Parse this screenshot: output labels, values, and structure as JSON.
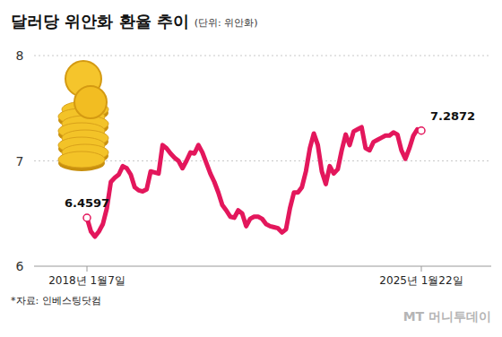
{
  "chart_data": {
    "type": "line",
    "title": "달러당 위안화 환율 추이",
    "subtitle": "(단위: 위안화)",
    "source": "*자료: 인베스팅닷컴",
    "watermark": "MT 머니투데이",
    "color": "#e3175c",
    "grid": true,
    "marker": "circle",
    "ylim": [
      6,
      8
    ],
    "yticks": [
      6,
      7,
      8
    ],
    "annotations": [
      "6.4597",
      "7.2872"
    ],
    "categories": [
      "2018년 1월7일",
      null,
      null,
      null,
      null,
      null,
      null,
      null,
      null,
      null,
      null,
      null,
      null,
      null,
      null,
      null,
      null,
      null,
      null,
      null,
      null,
      null,
      null,
      null,
      null,
      null,
      null,
      null,
      null,
      null,
      null,
      null,
      null,
      null,
      null,
      null,
      null,
      null,
      null,
      null,
      null,
      null,
      null,
      null,
      null,
      null,
      null,
      null,
      null,
      null,
      null,
      null,
      null,
      null,
      null,
      null,
      null,
      null,
      null,
      null,
      null,
      null,
      null,
      null,
      null,
      null,
      null,
      null,
      null,
      null,
      null,
      null,
      null,
      null,
      null,
      null,
      null,
      null,
      null,
      null,
      null,
      null,
      null,
      null,
      "2025년 1월22일"
    ],
    "values": [
      6.4597,
      6.33,
      6.28,
      6.33,
      6.4,
      6.55,
      6.8,
      6.84,
      6.87,
      6.95,
      6.93,
      6.87,
      6.75,
      6.72,
      6.71,
      6.73,
      6.9,
      6.89,
      6.88,
      7.15,
      7.12,
      7.07,
      7.03,
      7.0,
      6.93,
      7.0,
      7.08,
      7.07,
      7.15,
      7.08,
      6.98,
      6.88,
      6.8,
      6.7,
      6.58,
      6.53,
      6.47,
      6.46,
      6.53,
      6.5,
      6.38,
      6.45,
      6.47,
      6.47,
      6.45,
      6.4,
      6.38,
      6.37,
      6.36,
      6.32,
      6.35,
      6.55,
      6.7,
      6.7,
      6.75,
      6.9,
      7.12,
      7.26,
      7.15,
      6.9,
      6.78,
      6.95,
      6.88,
      6.92,
      7.1,
      7.25,
      7.15,
      7.28,
      7.3,
      7.32,
      7.12,
      7.1,
      7.18,
      7.2,
      7.22,
      7.24,
      7.24,
      7.27,
      7.25,
      7.1,
      7.02,
      7.12,
      7.24,
      7.3,
      7.2872
    ]
  }
}
